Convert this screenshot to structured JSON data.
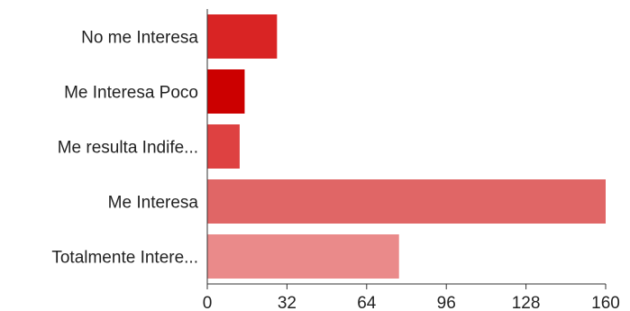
{
  "chart_data": {
    "type": "bar",
    "orientation": "horizontal",
    "title": "",
    "xlabel": "",
    "ylabel": "",
    "categories": [
      "No me Interesa",
      "Me Interesa Poco",
      "Me resulta Indife...",
      "Me Interesa",
      "Totalmente Intere..."
    ],
    "values": [
      28,
      15,
      13,
      160,
      77
    ],
    "colors": [
      "#d92424",
      "#cc0000",
      "#de4141",
      "#e06666",
      "#ea8a8a"
    ],
    "xlim": [
      0,
      160
    ],
    "xticks": [
      0,
      32,
      64,
      96,
      128,
      160
    ],
    "grid": false,
    "legend": "none"
  }
}
